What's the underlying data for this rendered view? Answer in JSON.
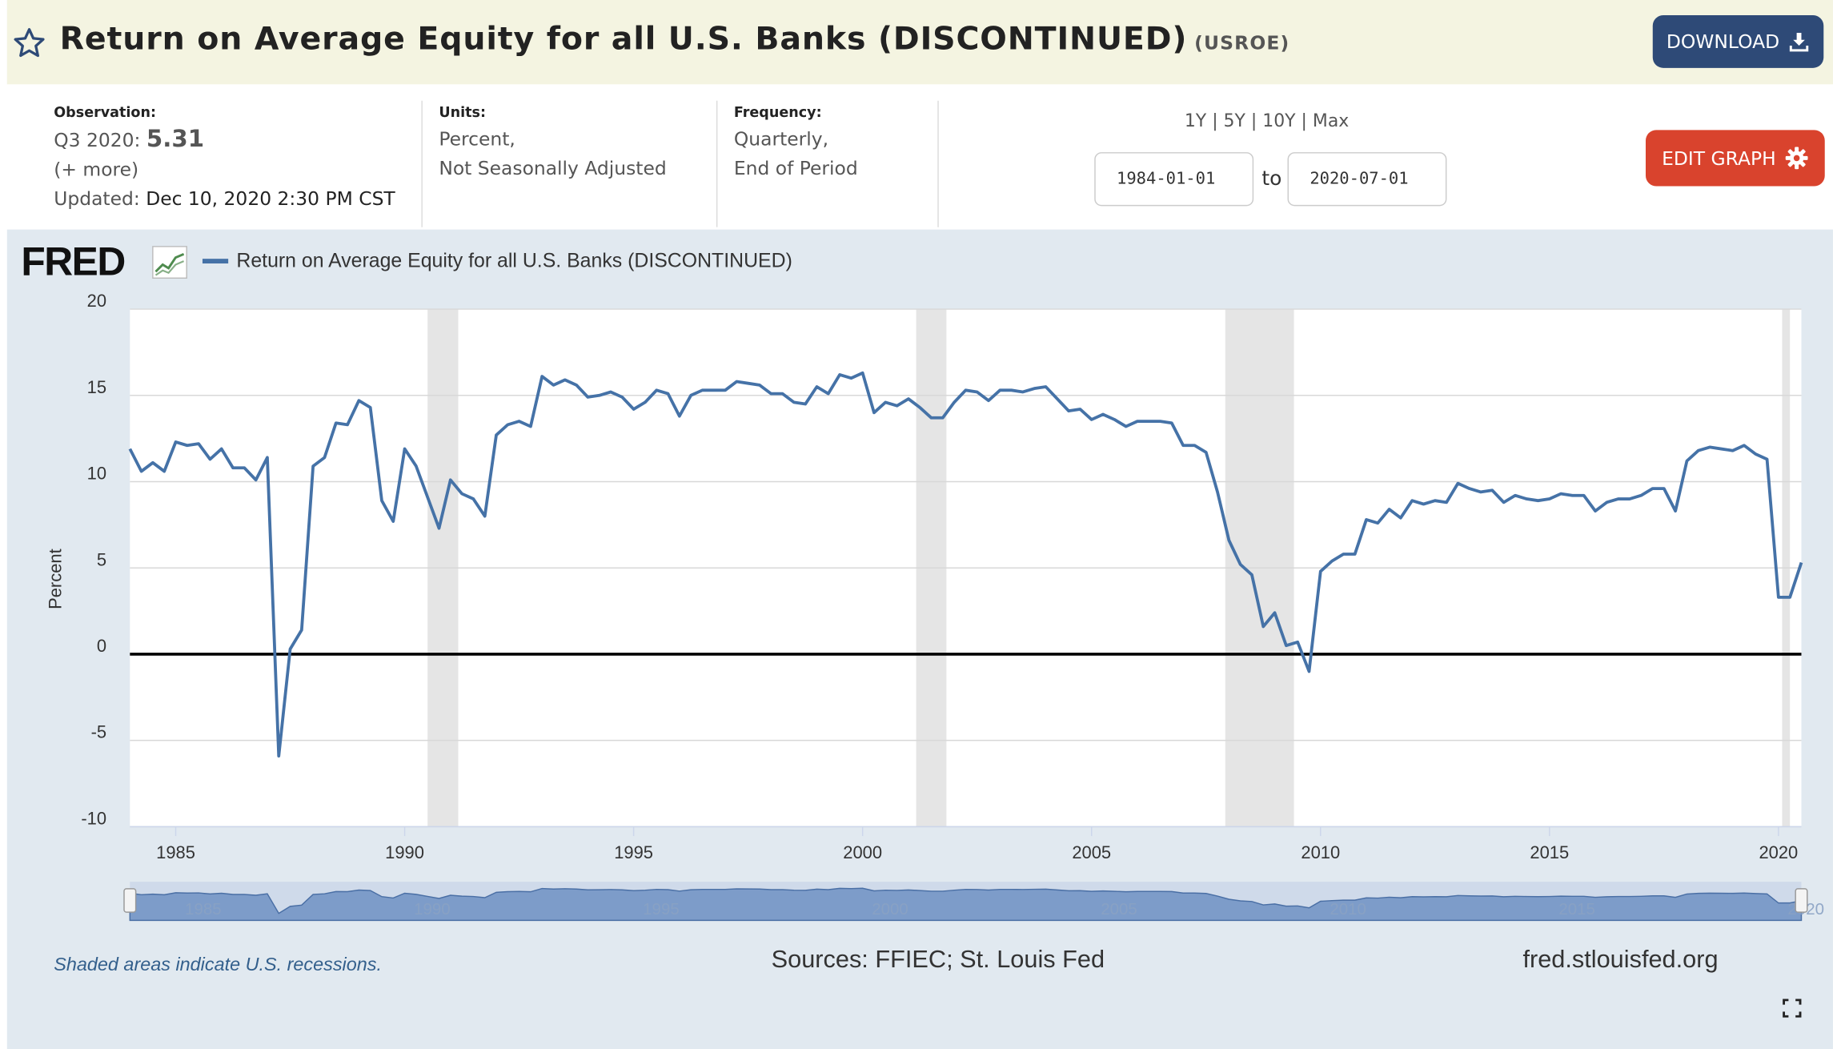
{
  "header": {
    "title": "Return on Average Equity for all U.S. Banks (DISCONTINUED)",
    "series_id": "(USROE)",
    "download_label": "DOWNLOAD"
  },
  "observation": {
    "label": "Observation:",
    "period": "Q3 2020:",
    "value": "5.31",
    "more": "(+ more)",
    "updated_label": "Updated:",
    "updated_value": "Dec 10, 2020 2:30 PM CST"
  },
  "units": {
    "label": "Units:",
    "line1": "Percent,",
    "line2": "Not Seasonally Adjusted"
  },
  "frequency": {
    "label": "Frequency:",
    "line1": "Quarterly,",
    "line2": "End of Period"
  },
  "ranges": [
    "1Y",
    "5Y",
    "10Y",
    "Max"
  ],
  "date_range": {
    "start": "1984-01-01",
    "to_label": "to",
    "end": "2020-07-01"
  },
  "edit_label": "EDIT GRAPH",
  "colors": {
    "series": "#4572a7",
    "recession": "#e5e5e5",
    "panel": "#e1e9f0",
    "download": "#2e4a77",
    "edit": "#d9432d"
  },
  "footer": {
    "note": "Shaded areas indicate U.S. recessions.",
    "sources": "Sources: FFIEC; St. Louis Fed",
    "site": "fred.stlouisfed.org"
  },
  "chart_data": {
    "type": "line",
    "brand": "FRED",
    "ylabel": "Percent",
    "xlim": [
      1984.0,
      2020.5
    ],
    "ylim": [
      -10,
      20
    ],
    "yticks": [
      20,
      15,
      10,
      5,
      0,
      -5,
      -10
    ],
    "xticks": [
      1985,
      1990,
      1995,
      2000,
      2005,
      2010,
      2015,
      2020
    ],
    "grid": true,
    "zero_line": true,
    "recessions": [
      [
        1990.5,
        1991.17
      ],
      [
        2001.17,
        2001.83
      ],
      [
        2007.92,
        2009.42
      ],
      [
        2020.08,
        2020.25
      ]
    ],
    "series": [
      {
        "name": "Return on Average Equity for all U.S. Banks (DISCONTINUED)",
        "color": "#4572a7",
        "points": [
          [
            1984.0,
            11.9
          ],
          [
            1984.25,
            10.6
          ],
          [
            1984.5,
            11.1
          ],
          [
            1984.75,
            10.6
          ],
          [
            1985.0,
            12.3
          ],
          [
            1985.25,
            12.1
          ],
          [
            1985.5,
            12.2
          ],
          [
            1985.75,
            11.3
          ],
          [
            1986.0,
            11.9
          ],
          [
            1986.25,
            10.8
          ],
          [
            1986.5,
            10.8
          ],
          [
            1986.75,
            10.1
          ],
          [
            1987.0,
            11.4
          ],
          [
            1987.25,
            -5.9
          ],
          [
            1987.5,
            0.3
          ],
          [
            1987.75,
            1.4
          ],
          [
            1988.0,
            10.9
          ],
          [
            1988.25,
            11.4
          ],
          [
            1988.5,
            13.4
          ],
          [
            1988.75,
            13.3
          ],
          [
            1989.0,
            14.7
          ],
          [
            1989.25,
            14.3
          ],
          [
            1989.5,
            8.9
          ],
          [
            1989.75,
            7.7
          ],
          [
            1990.0,
            11.9
          ],
          [
            1990.25,
            10.9
          ],
          [
            1990.5,
            9.1
          ],
          [
            1990.75,
            7.3
          ],
          [
            1991.0,
            10.1
          ],
          [
            1991.25,
            9.3
          ],
          [
            1991.5,
            9.0
          ],
          [
            1991.75,
            8.0
          ],
          [
            1992.0,
            12.7
          ],
          [
            1992.25,
            13.3
          ],
          [
            1992.5,
            13.5
          ],
          [
            1992.75,
            13.2
          ],
          [
            1993.0,
            16.1
          ],
          [
            1993.25,
            15.6
          ],
          [
            1993.5,
            15.9
          ],
          [
            1993.75,
            15.6
          ],
          [
            1994.0,
            14.9
          ],
          [
            1994.25,
            15.0
          ],
          [
            1994.5,
            15.2
          ],
          [
            1994.75,
            14.9
          ],
          [
            1995.0,
            14.2
          ],
          [
            1995.25,
            14.6
          ],
          [
            1995.5,
            15.3
          ],
          [
            1995.75,
            15.1
          ],
          [
            1996.0,
            13.8
          ],
          [
            1996.25,
            15.0
          ],
          [
            1996.5,
            15.3
          ],
          [
            1996.75,
            15.3
          ],
          [
            1997.0,
            15.3
          ],
          [
            1997.25,
            15.8
          ],
          [
            1997.5,
            15.7
          ],
          [
            1997.75,
            15.6
          ],
          [
            1998.0,
            15.1
          ],
          [
            1998.25,
            15.1
          ],
          [
            1998.5,
            14.6
          ],
          [
            1998.75,
            14.5
          ],
          [
            1999.0,
            15.5
          ],
          [
            1999.25,
            15.1
          ],
          [
            1999.5,
            16.2
          ],
          [
            1999.75,
            16.0
          ],
          [
            2000.0,
            16.3
          ],
          [
            2000.25,
            14.0
          ],
          [
            2000.5,
            14.6
          ],
          [
            2000.75,
            14.4
          ],
          [
            2001.0,
            14.8
          ],
          [
            2001.25,
            14.3
          ],
          [
            2001.5,
            13.7
          ],
          [
            2001.75,
            13.7
          ],
          [
            2002.0,
            14.6
          ],
          [
            2002.25,
            15.3
          ],
          [
            2002.5,
            15.2
          ],
          [
            2002.75,
            14.7
          ],
          [
            2003.0,
            15.3
          ],
          [
            2003.25,
            15.3
          ],
          [
            2003.5,
            15.2
          ],
          [
            2003.75,
            15.4
          ],
          [
            2004.0,
            15.5
          ],
          [
            2004.25,
            14.8
          ],
          [
            2004.5,
            14.1
          ],
          [
            2004.75,
            14.2
          ],
          [
            2005.0,
            13.6
          ],
          [
            2005.25,
            13.9
          ],
          [
            2005.5,
            13.6
          ],
          [
            2005.75,
            13.2
          ],
          [
            2006.0,
            13.5
          ],
          [
            2006.25,
            13.5
          ],
          [
            2006.5,
            13.5
          ],
          [
            2006.75,
            13.4
          ],
          [
            2007.0,
            12.1
          ],
          [
            2007.25,
            12.1
          ],
          [
            2007.5,
            11.7
          ],
          [
            2007.75,
            9.4
          ],
          [
            2008.0,
            6.6
          ],
          [
            2008.25,
            5.2
          ],
          [
            2008.5,
            4.6
          ],
          [
            2008.75,
            1.6
          ],
          [
            2009.0,
            2.4
          ],
          [
            2009.25,
            0.5
          ],
          [
            2009.5,
            0.7
          ],
          [
            2009.75,
            -1.0
          ],
          [
            2010.0,
            4.8
          ],
          [
            2010.25,
            5.4
          ],
          [
            2010.5,
            5.8
          ],
          [
            2010.75,
            5.8
          ],
          [
            2011.0,
            7.8
          ],
          [
            2011.25,
            7.6
          ],
          [
            2011.5,
            8.4
          ],
          [
            2011.75,
            7.9
          ],
          [
            2012.0,
            8.9
          ],
          [
            2012.25,
            8.7
          ],
          [
            2012.5,
            8.9
          ],
          [
            2012.75,
            8.8
          ],
          [
            2013.0,
            9.9
          ],
          [
            2013.25,
            9.6
          ],
          [
            2013.5,
            9.4
          ],
          [
            2013.75,
            9.5
          ],
          [
            2014.0,
            8.8
          ],
          [
            2014.25,
            9.2
          ],
          [
            2014.5,
            9.0
          ],
          [
            2014.75,
            8.9
          ],
          [
            2015.0,
            9.0
          ],
          [
            2015.25,
            9.3
          ],
          [
            2015.5,
            9.2
          ],
          [
            2015.75,
            9.2
          ],
          [
            2016.0,
            8.3
          ],
          [
            2016.25,
            8.8
          ],
          [
            2016.5,
            9.0
          ],
          [
            2016.75,
            9.0
          ],
          [
            2017.0,
            9.2
          ],
          [
            2017.25,
            9.6
          ],
          [
            2017.5,
            9.6
          ],
          [
            2017.75,
            8.3
          ],
          [
            2018.0,
            11.2
          ],
          [
            2018.25,
            11.8
          ],
          [
            2018.5,
            12.0
          ],
          [
            2018.75,
            11.9
          ],
          [
            2019.0,
            11.8
          ],
          [
            2019.25,
            12.1
          ],
          [
            2019.5,
            11.6
          ],
          [
            2019.75,
            11.3
          ],
          [
            2020.0,
            3.3
          ],
          [
            2020.25,
            3.3
          ],
          [
            2020.5,
            5.31
          ]
        ]
      }
    ]
  }
}
